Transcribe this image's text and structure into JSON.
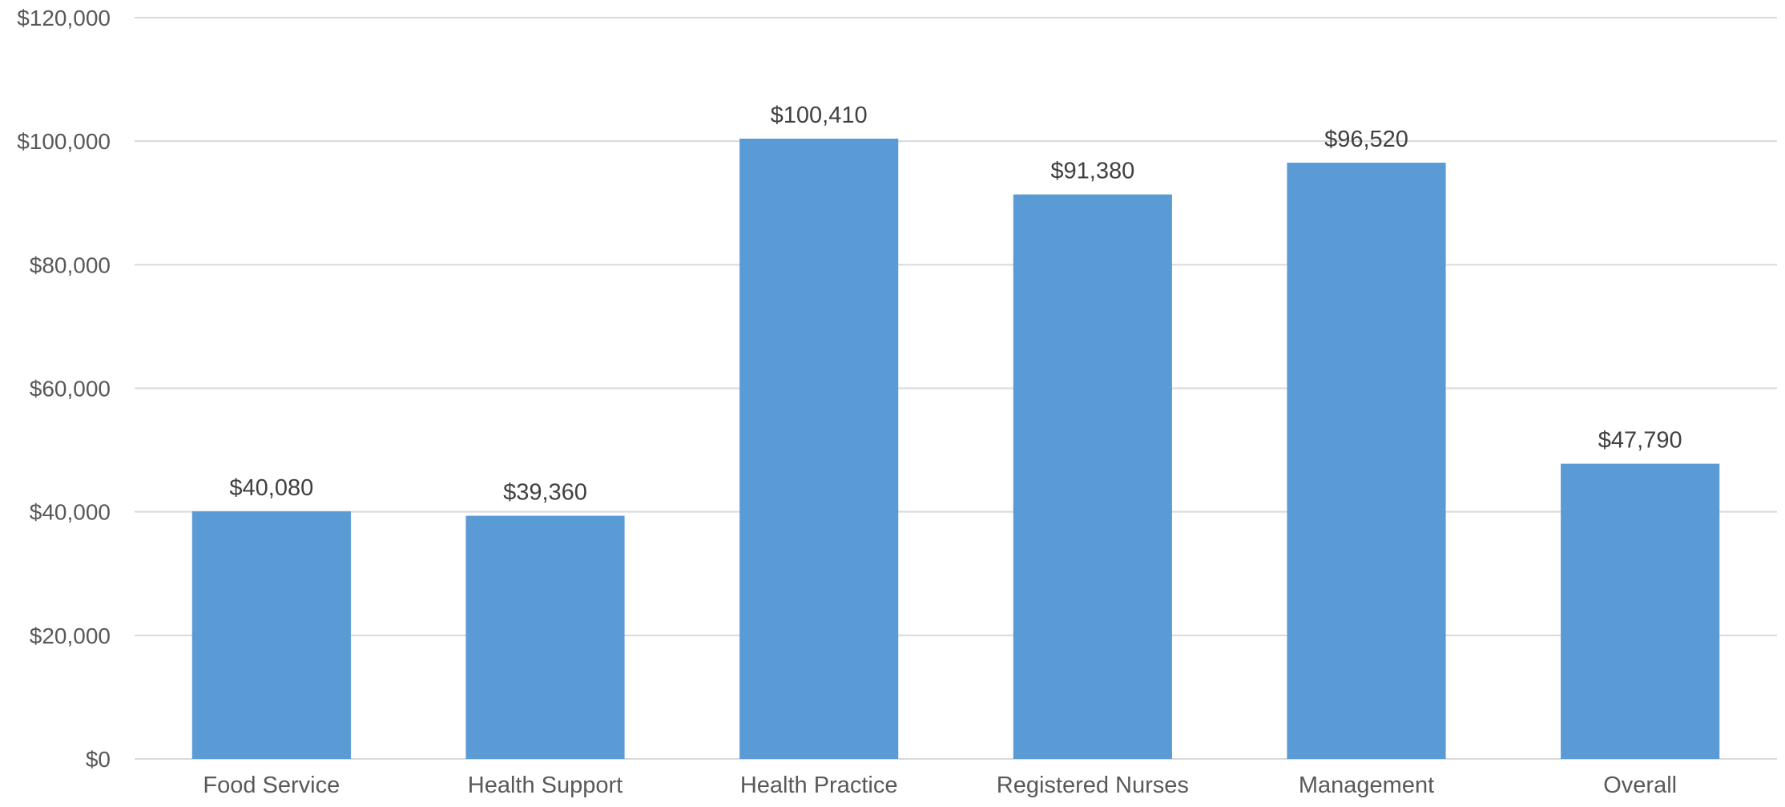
{
  "chart_data": {
    "type": "bar",
    "categories": [
      "Food Service",
      "Health Support",
      "Health Practice",
      "Registered Nurses",
      "Management",
      "Overall"
    ],
    "values": [
      40080,
      39360,
      100410,
      91380,
      96520,
      47790
    ],
    "data_labels": [
      "$40,080",
      "$39,360",
      "$100,410",
      "$91,380",
      "$96,520",
      "$47,790"
    ],
    "y_ticks": [
      0,
      20000,
      40000,
      60000,
      80000,
      100000,
      120000
    ],
    "y_tick_labels": [
      "$0",
      "$20,000",
      "$40,000",
      "$60,000",
      "$80,000",
      "$100,000",
      "$120,000"
    ],
    "ylim": [
      0,
      120000
    ],
    "title": "",
    "xlabel": "",
    "ylabel": "",
    "grid": true,
    "legend": "none",
    "bar_color": "#5b9bd5",
    "grid_color": "#d9d9d9"
  }
}
